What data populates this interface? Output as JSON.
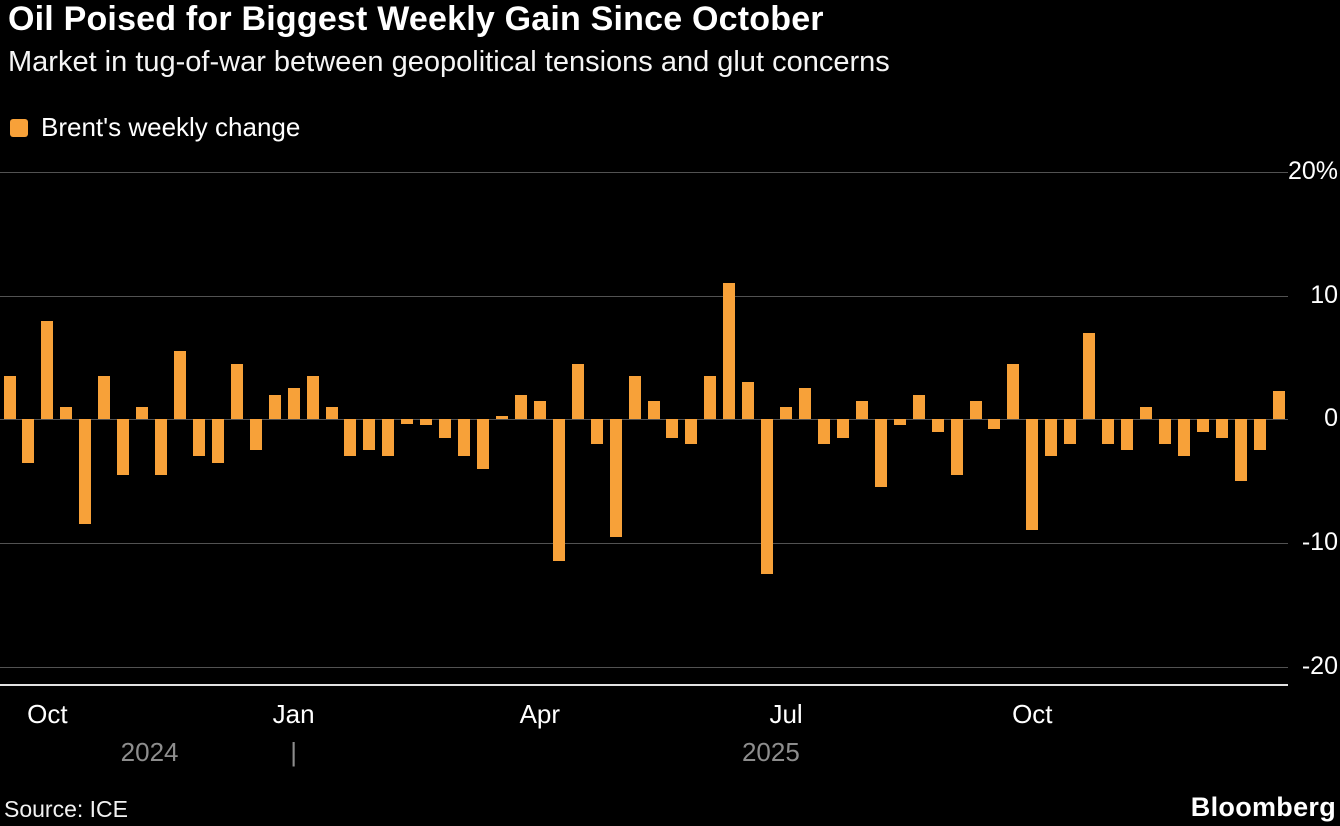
{
  "header": {
    "title": "Oil Poised for Biggest Weekly Gain Since October",
    "subtitle": "Market in tug-of-war between geopolitical tensions and glut concerns"
  },
  "legend": {
    "label": "Brent's weekly change",
    "swatch_color": "#f7a139"
  },
  "footer": {
    "source": "Source: ICE",
    "brand": "Bloomberg"
  },
  "chart_data": {
    "type": "bar",
    "title": "Oil Poised for Biggest Weekly Gain Since October",
    "subtitle": "Market in tug-of-war between geopolitical tensions and glut concerns",
    "series": [
      {
        "name": "Brent's weekly change",
        "values": [
          3.5,
          -3.5,
          8,
          1,
          -8.5,
          3.5,
          -4.5,
          1,
          -4.5,
          5.5,
          -3,
          -3.5,
          4.5,
          -2.5,
          2,
          2.5,
          3.5,
          1,
          -3,
          -2.5,
          -3,
          -0.4,
          -0.5,
          -1.5,
          -3,
          -4,
          0.3,
          2,
          1.5,
          -11.5,
          4.5,
          -2,
          -9.5,
          3.5,
          1.5,
          -1.5,
          -2,
          3.5,
          11,
          3,
          -12.5,
          1,
          2.5,
          -2,
          -1.5,
          1.5,
          -5.5,
          -0.5,
          2,
          -1,
          -4.5,
          1.5,
          -0.8,
          4.5,
          -9,
          -3,
          -2,
          7,
          -2,
          -2.5,
          1,
          -2,
          -3,
          -1,
          -1.5,
          -5,
          -2.5,
          2.3
        ]
      }
    ],
    "unit": "%",
    "x_frequency": "weekly",
    "ylim": [
      -21.5,
      20.5
    ],
    "grid": true,
    "legend_position": "top-left",
    "yticks": [
      {
        "value": 20,
        "label": "20%"
      },
      {
        "value": 10,
        "label": "10"
      },
      {
        "value": 0,
        "label": "0"
      },
      {
        "value": -10,
        "label": "-10"
      },
      {
        "value": -20,
        "label": "-20"
      }
    ],
    "xticks": [
      {
        "position": 2,
        "label": "Oct"
      },
      {
        "position": 15,
        "label": "Jan"
      },
      {
        "position": 28,
        "label": "Apr"
      },
      {
        "position": 41,
        "label": "Jul"
      },
      {
        "position": 54,
        "label": "Oct"
      }
    ],
    "year_labels": [
      {
        "position": 7.4,
        "label": "2024"
      },
      {
        "position": 40.2,
        "label": "2025"
      }
    ],
    "year_separator": {
      "position": 15,
      "label": "|"
    },
    "bar_color": "#f7a139",
    "grid_color": "#525252",
    "axis_line_color": "#e2e2e2"
  }
}
